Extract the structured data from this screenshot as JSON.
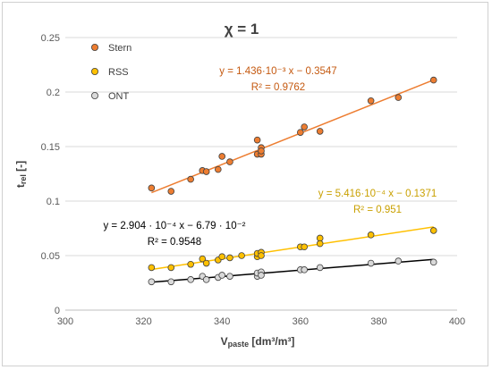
{
  "chart_data": {
    "type": "scatter",
    "title": "χ = 1",
    "xlabel": {
      "main": "V",
      "sub": "paste",
      "unit": " [dm³/m³]"
    },
    "ylabel": {
      "main": "t",
      "sub": "rel",
      "unit": " [-]"
    },
    "xlim": [
      300,
      400
    ],
    "ylim": [
      0,
      0.25
    ],
    "xticks": [
      "300",
      "320",
      "340",
      "360",
      "380",
      "400"
    ],
    "yticks": [
      "0",
      "0.05",
      "0.1",
      "0.15",
      "0.2",
      "0.25"
    ],
    "grid": "horizontal",
    "legend_position": "top-left",
    "series": [
      {
        "name": "Stern",
        "color": "#ED7D31",
        "marker_fill": "#ED7D31",
        "points": [
          [
            322,
            0.112
          ],
          [
            327,
            0.109
          ],
          [
            332,
            0.12
          ],
          [
            335,
            0.128
          ],
          [
            336,
            0.127
          ],
          [
            339,
            0.129
          ],
          [
            340,
            0.141
          ],
          [
            342,
            0.136
          ],
          [
            349,
            0.156
          ],
          [
            349,
            0.143
          ],
          [
            350,
            0.143
          ],
          [
            350,
            0.149
          ],
          [
            350,
            0.146
          ],
          [
            360,
            0.163
          ],
          [
            361,
            0.168
          ],
          [
            365,
            0.164
          ],
          [
            378,
            0.192
          ],
          [
            385,
            0.195
          ],
          [
            394,
            0.211
          ]
        ],
        "fit": {
          "slope": 0.001436,
          "intercept": -0.3547
        },
        "equation_line1": "y = 1.436·10⁻³ x − 0.3547",
        "equation_line2": "R² = 0.9762"
      },
      {
        "name": "RSS",
        "color": "#FFC000",
        "marker_fill": "#FFC000",
        "points": [
          [
            322,
            0.039
          ],
          [
            327,
            0.039
          ],
          [
            332,
            0.042
          ],
          [
            335,
            0.047
          ],
          [
            336,
            0.043
          ],
          [
            339,
            0.046
          ],
          [
            340,
            0.049
          ],
          [
            342,
            0.048
          ],
          [
            345,
            0.05
          ],
          [
            349,
            0.049
          ],
          [
            349,
            0.052
          ],
          [
            350,
            0.053
          ],
          [
            350,
            0.05
          ],
          [
            360,
            0.058
          ],
          [
            361,
            0.058
          ],
          [
            365,
            0.066
          ],
          [
            365,
            0.061
          ],
          [
            378,
            0.069
          ],
          [
            394,
            0.073
          ]
        ],
        "fit": {
          "slope": 0.0005416,
          "intercept": -0.1371
        },
        "equation_line1": "y = 5.416·10⁻⁴ x − 0.1371",
        "equation_line2": "R² = 0.951"
      },
      {
        "name": "ONT",
        "color": "#000000",
        "marker_fill": "#D9D9D9",
        "points": [
          [
            322,
            0.026
          ],
          [
            327,
            0.026
          ],
          [
            332,
            0.028
          ],
          [
            335,
            0.031
          ],
          [
            336,
            0.028
          ],
          [
            339,
            0.03
          ],
          [
            340,
            0.032
          ],
          [
            342,
            0.031
          ],
          [
            349,
            0.031
          ],
          [
            349,
            0.034
          ],
          [
            350,
            0.035
          ],
          [
            350,
            0.032
          ],
          [
            360,
            0.037
          ],
          [
            361,
            0.037
          ],
          [
            365,
            0.039
          ],
          [
            378,
            0.043
          ],
          [
            385,
            0.045
          ],
          [
            394,
            0.044
          ]
        ],
        "fit": {
          "slope": 0.0002904,
          "intercept": -0.0679
        },
        "equation_line1": "y = 2.904 · 10⁻⁴ x − 6.79 · 10⁻²",
        "equation_line2": "R² = 0.9548"
      }
    ]
  }
}
